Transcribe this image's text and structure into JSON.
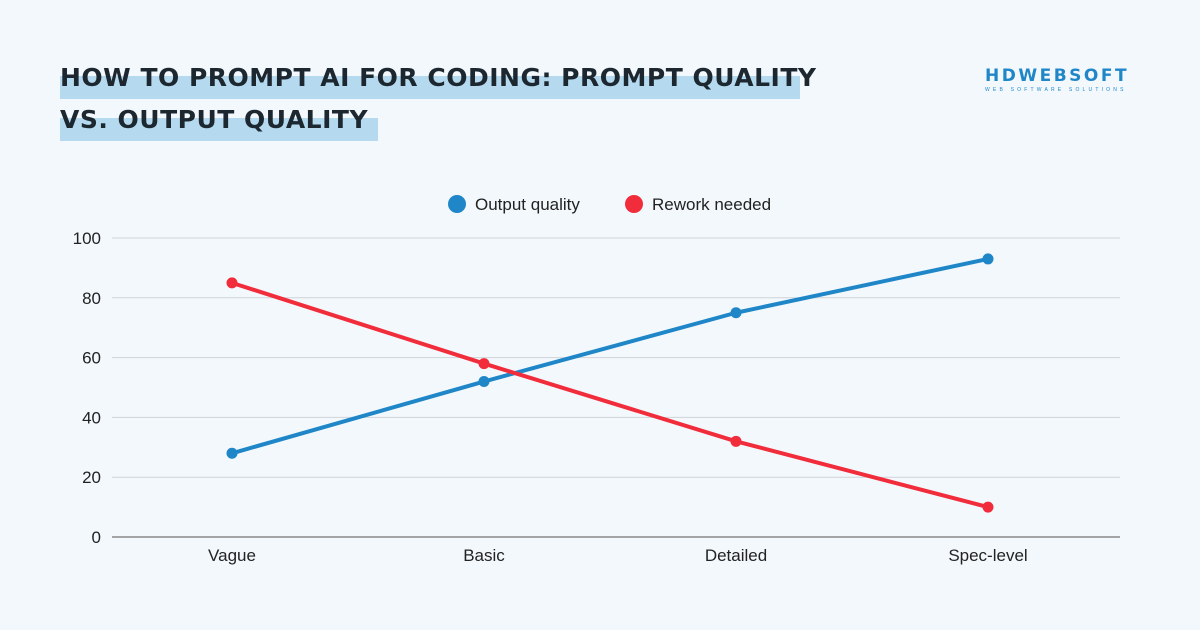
{
  "title": {
    "line1": "HOW TO PROMPT AI FOR CODING: PROMPT QUALITY",
    "line2": "VS. OUTPUT QUALITY"
  },
  "logo": {
    "main": "HDWEBSOFT",
    "sub": "WEB SOFTWARE SOLUTIONS"
  },
  "chart_data": {
    "type": "line",
    "title": "HOW TO PROMPT AI FOR CODING: PROMPT QUALITY VS. OUTPUT QUALITY",
    "categories": [
      "Vague",
      "Basic",
      "Detailed",
      "Spec-level"
    ],
    "series": [
      {
        "name": "Output quality",
        "color": "#1f86c8",
        "values": [
          28,
          52,
          75,
          93
        ]
      },
      {
        "name": "Rework needed",
        "color": "#f12d3c",
        "values": [
          85,
          58,
          32,
          10
        ]
      }
    ],
    "ylim": [
      0,
      100
    ],
    "yticks": [
      0,
      20,
      40,
      60,
      80,
      100
    ],
    "grid": true,
    "legend": "top-center",
    "xlabel": "",
    "ylabel": ""
  }
}
